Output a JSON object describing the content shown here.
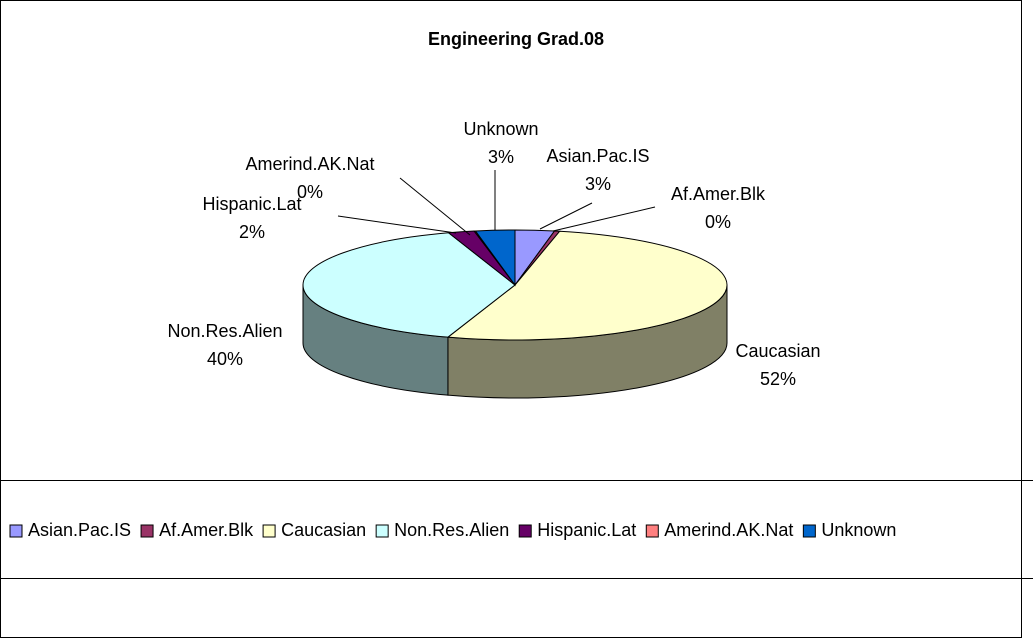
{
  "chart_data": {
    "type": "pie3d",
    "title": "Engineering Grad.08",
    "categories": [
      "Asian.Pac.IS",
      "Af.Amer.Blk",
      "Caucasian",
      "Non.Res.Alien",
      "Hispanic.Lat",
      "Amerind.AK.Nat",
      "Unknown"
    ],
    "values": [
      3,
      0.4,
      52,
      40,
      2,
      0.1,
      3
    ],
    "value_labels": [
      "3%",
      "0%",
      "52%",
      "40%",
      "2%",
      "0%",
      "3%"
    ],
    "colors": [
      "#9999ff",
      "#993366",
      "#ffffcc",
      "#ccffff",
      "#660066",
      "#ff8080",
      "#0066cc"
    ],
    "legend": "bottom"
  }
}
